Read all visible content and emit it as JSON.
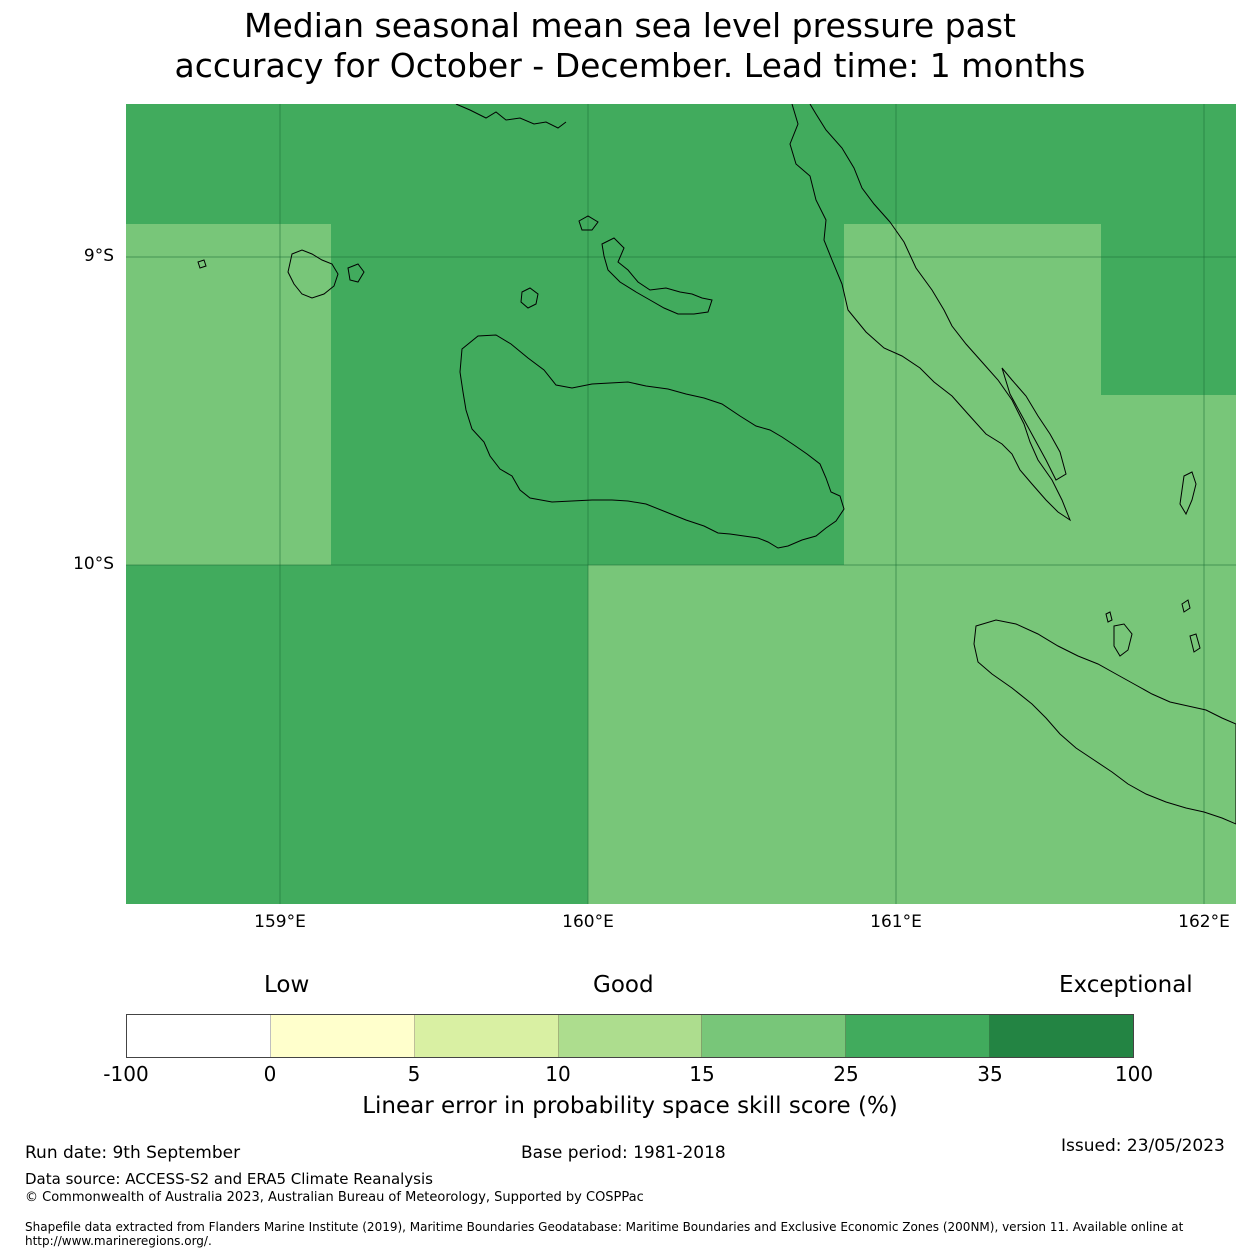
{
  "title": {
    "line1": "Median seasonal mean sea level pressure past",
    "line2": "accuracy for October - December. Lead time: 1 months"
  },
  "map": {
    "lat_labels": [
      "9°S",
      "10°S"
    ],
    "lon_labels": [
      "159°E",
      "160°E",
      "161°E",
      "162°E"
    ],
    "colors": {
      "ocean_base": "#41ab5d",
      "lighter_class": "#78c679",
      "coastline": "#000000"
    }
  },
  "colorbar": {
    "category_labels": {
      "low": "Low",
      "good": "Good",
      "exceptional": "Exceptional"
    },
    "ticks": [
      "-100",
      "0",
      "5",
      "10",
      "15",
      "25",
      "35",
      "100"
    ],
    "colors": [
      "#ffffff",
      "#ffffcc",
      "#d9f0a3",
      "#addd8e",
      "#78c679",
      "#41ab5d",
      "#238443"
    ],
    "label": "Linear error in probability space skill score (%)"
  },
  "footer": {
    "run_date": "Run date: 9th September",
    "base_period": "Base period: 1981-2018",
    "issued": "Issued: 23/05/2023",
    "data_source": "Data source: ACCESS-S2 and ERA5 Climate Reanalysis",
    "copyright": "© Commonwealth of Australia 2023, Australian Bureau of Meteorology, Supported by COSPPac",
    "shapefile": "Shapefile data extracted from Flanders Marine Institute (2019), Maritime Boundaries Geodatabase: Maritime Boundaries and Exclusive Economic Zones (200NM), version 11. Available online at http://www.marineregions.org/."
  }
}
